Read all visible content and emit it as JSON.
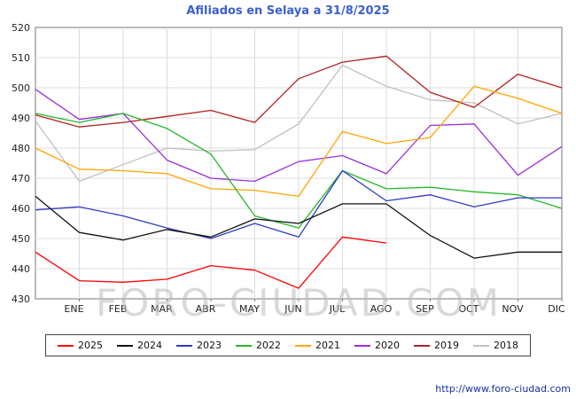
{
  "title": "Afiliados en Selaya a 31/8/2025",
  "footer_url": "http://www.foro-ciudad.com",
  "watermark": "FORO-CIUDAD.COM",
  "colors": {
    "title": "#3a5fd0",
    "grid": "#dcdcdc",
    "axis_border": "#777777",
    "tick_text": "#222222",
    "watermark": "#bbbbbb",
    "footer_link": "#16309c"
  },
  "chart_data": {
    "type": "line",
    "title": "Afiliados en Selaya a 31/8/2025",
    "xlabel": "",
    "ylabel": "",
    "categories": [
      "ENE",
      "FEB",
      "MAR",
      "ABR",
      "MAY",
      "JUN",
      "JUL",
      "AGO",
      "SEP",
      "OCT",
      "NOV",
      "DIC"
    ],
    "x_positions_note": "each series has 13 points: index 0 = left-edge (previous December), indices 1-12 = ENE..DIC; 2025 ends at AGO",
    "ylim": [
      430,
      520
    ],
    "yticks": [
      430,
      440,
      450,
      460,
      470,
      480,
      490,
      500,
      510,
      520
    ],
    "grid": true,
    "legend_position": "bottom",
    "series": [
      {
        "name": "2025",
        "color": "#ff0000",
        "values": [
          445.5,
          436,
          435.5,
          436.5,
          441,
          439.5,
          433.5,
          450.5,
          448.5
        ]
      },
      {
        "name": "2024",
        "color": "#111111",
        "values": [
          464,
          452,
          449.5,
          453,
          450.5,
          456.5,
          455,
          461.5,
          461.5,
          451,
          443.5,
          445.5,
          445.5
        ]
      },
      {
        "name": "2023",
        "color": "#2e3bc7",
        "values": [
          459.5,
          460.5,
          457.5,
          453.5,
          450,
          455,
          450.5,
          472.5,
          462.5,
          464.5,
          460.5,
          463.5,
          463.5
        ]
      },
      {
        "name": "2022",
        "color": "#27b62a",
        "values": [
          491.5,
          488.5,
          491.5,
          486.5,
          478,
          457.5,
          453.5,
          472.5,
          466.5,
          467,
          465.5,
          464.5,
          460
        ]
      },
      {
        "name": "2021",
        "color": "#ffa500",
        "values": [
          480,
          473,
          472.5,
          471.5,
          466.5,
          466,
          464,
          485.5,
          481.5,
          483.5,
          500.5,
          496.5,
          491.5
        ]
      },
      {
        "name": "2020",
        "color": "#9b30d9",
        "values": [
          499.5,
          489.5,
          491.5,
          476,
          470,
          469,
          475.5,
          477.5,
          471.5,
          487.5,
          488,
          471,
          480.5
        ]
      },
      {
        "name": "2019",
        "color": "#b22222",
        "values": [
          491,
          487,
          488.5,
          490.5,
          492.5,
          488.5,
          503,
          508.5,
          510.5,
          498.5,
          493.5,
          504.5,
          500
        ]
      },
      {
        "name": "2018",
        "color": "#c0c0c0",
        "values": [
          489,
          469,
          474.5,
          480,
          479,
          479.5,
          488,
          507.5,
          500.5,
          496,
          495,
          488,
          491.5
        ]
      }
    ]
  }
}
